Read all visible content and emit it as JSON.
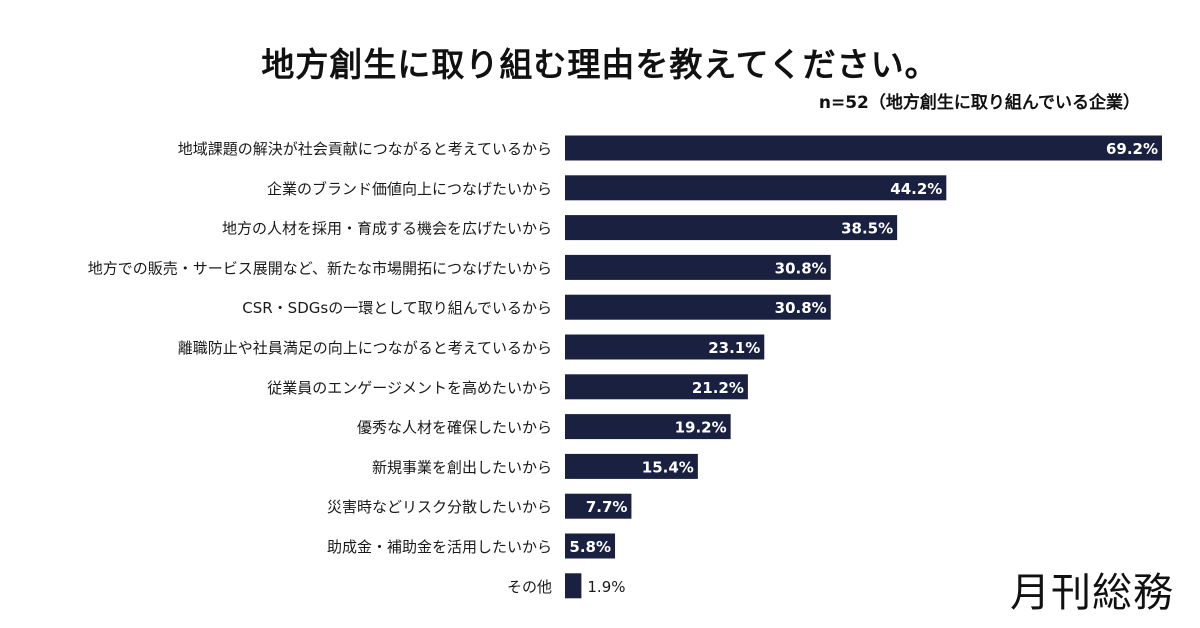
{
  "header": {
    "title": "地方創生に取り組む理由を教えてください。",
    "subtitle": "n=52（地方創生に取り組んでいる企業）"
  },
  "logo": {
    "text": "月刊総務"
  },
  "colors": {
    "bar": "#1a2040",
    "label_inside": "#ffffff",
    "label_outside": "#1a1a1a"
  },
  "chart_data": {
    "type": "bar",
    "orientation": "horizontal",
    "categories": [
      "地域課題の解決が社会貢献につながると考えているから",
      "企業のブランド価値向上につなげたいから",
      "地方の人材を採用・育成する機会を広げたいから",
      "地方での販売・サービス展開など、新たな市場開拓につなげたいから",
      "CSR・SDGsの一環として取り組んでいるから",
      "離職防止や社員満足の向上につながると考えているから",
      "従業員のエンゲージメントを高めたいから",
      "優秀な人材を確保したいから",
      "新規事業を創出したいから",
      "災害時などリスク分散したいから",
      "助成金・補助金を活用したいから",
      "その他"
    ],
    "values": [
      69.2,
      44.2,
      38.5,
      30.8,
      30.8,
      23.1,
      21.2,
      19.2,
      15.4,
      7.7,
      5.8,
      1.9
    ],
    "value_labels": [
      "69.2%",
      "44.2%",
      "38.5%",
      "30.8%",
      "30.8%",
      "23.1%",
      "21.2%",
      "19.2%",
      "15.4%",
      "7.7%",
      "5.8%",
      "1.9%"
    ],
    "unit": "%",
    "xlim": [
      0,
      69.2
    ],
    "title": "地方創生に取り組む理由を教えてください。",
    "xlabel": "",
    "ylabel": "",
    "grid": false
  }
}
